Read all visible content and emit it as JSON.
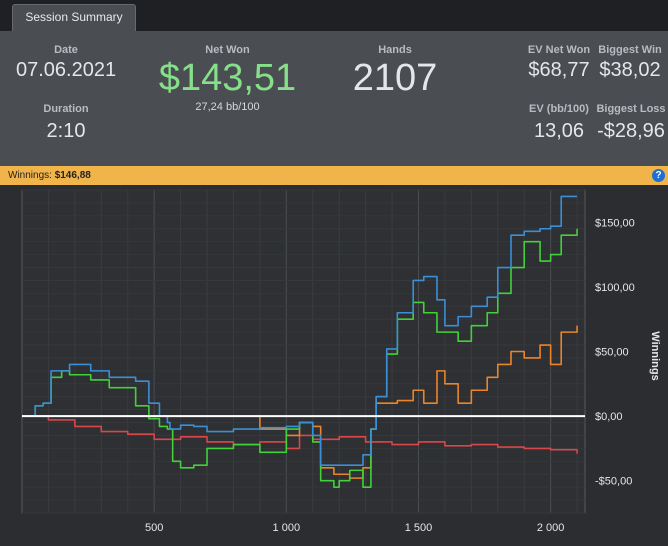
{
  "tab": {
    "label": "Session Summary"
  },
  "summary": {
    "date_label": "Date",
    "date_value": "07.06.2021",
    "duration_label": "Duration",
    "duration_value": "2:10",
    "netwon_label": "Net Won",
    "netwon_value": "$143,51",
    "netwon_sub": "27,24 bb/100",
    "hands_label": "Hands",
    "hands_value": "2107",
    "ev_net_label": "EV Net Won",
    "ev_net_value": "$68,77",
    "biggest_win_label": "Biggest Win",
    "biggest_win_value": "$38,02",
    "ev_bb_label": "EV (bb/100)",
    "ev_bb_value": "13,06",
    "biggest_loss_label": "Biggest Loss",
    "biggest_loss_value": "-$28,96"
  },
  "winnings_bar": {
    "label": "Winnings:",
    "value": "$146,88",
    "help": "?"
  },
  "colors": {
    "blue": "#3a8fd6",
    "green": "#43d13a",
    "orange": "#e8862a",
    "red": "#d9474a",
    "netwon_value": "#86e08a",
    "orangebar": "#f0b44a"
  },
  "chart_data": {
    "type": "line",
    "xlabel": "",
    "ylabel": "Winnings",
    "xlim": [
      0,
      2130
    ],
    "ylim": [
      -75,
      175
    ],
    "x_ticks": [
      500,
      1000,
      1500,
      2000
    ],
    "x_tick_labels": [
      "500",
      "1 000",
      "1 500",
      "2 000"
    ],
    "y_ticks": [
      150,
      100,
      50,
      0,
      -50
    ],
    "y_tick_labels": [
      "$150,00",
      "$100,00",
      "$50,00",
      "$0,00",
      "-$50,00"
    ],
    "zero_line": 0,
    "grid": true,
    "series": [
      {
        "color": "blue",
        "x": [
          0,
          50,
          80,
          110,
          180,
          260,
          330,
          430,
          480,
          520,
          550,
          560,
          600,
          650,
          700,
          800,
          900,
          1000,
          1050,
          1100,
          1130,
          1200,
          1250,
          1290,
          1320,
          1340,
          1380,
          1420,
          1480,
          1520,
          1570,
          1600,
          1650,
          1700,
          1760,
          1800,
          1850,
          1900,
          1960,
          2000,
          2040,
          2100
        ],
        "y": [
          0,
          8,
          10,
          35,
          40,
          35,
          30,
          27,
          10,
          0,
          -5,
          -10,
          -7,
          -8,
          -12,
          -10,
          -9,
          -8,
          -5,
          -15,
          -38,
          -38,
          -38,
          -30,
          -10,
          15,
          52,
          80,
          105,
          108,
          90,
          70,
          77,
          85,
          92,
          115,
          140,
          143,
          145,
          147,
          170,
          170
        ]
      },
      {
        "color": "green",
        "x": [
          0,
          50,
          80,
          110,
          150,
          180,
          260,
          330,
          430,
          480,
          520,
          550,
          570,
          600,
          650,
          700,
          800,
          900,
          1000,
          1050,
          1100,
          1130,
          1180,
          1200,
          1240,
          1290,
          1320,
          1340,
          1380,
          1420,
          1480,
          1520,
          1570,
          1600,
          1650,
          1700,
          1760,
          1800,
          1850,
          1900,
          1960,
          2000,
          2040,
          2100
        ],
        "y": [
          0,
          8,
          10,
          30,
          35,
          32,
          28,
          22,
          8,
          -2,
          -8,
          -10,
          -35,
          -40,
          -38,
          -25,
          -22,
          -28,
          -10,
          -5,
          -20,
          -50,
          -55,
          -50,
          -42,
          -55,
          -10,
          15,
          48,
          75,
          88,
          80,
          65,
          65,
          58,
          70,
          80,
          95,
          115,
          135,
          120,
          125,
          140,
          145
        ]
      },
      {
        "color": "orange",
        "x": [
          0,
          800,
          900,
          1000,
          1050,
          1100,
          1130,
          1180,
          1240,
          1290,
          1320,
          1340,
          1380,
          1420,
          1480,
          1520,
          1570,
          1600,
          1650,
          1700,
          1760,
          1800,
          1850,
          1900,
          1960,
          2000,
          2040,
          2100
        ],
        "y": [
          0,
          0,
          -10,
          -15,
          -5,
          -8,
          -40,
          -45,
          -48,
          -40,
          -10,
          10,
          10,
          12,
          20,
          10,
          35,
          25,
          10,
          20,
          30,
          40,
          50,
          45,
          55,
          40,
          65,
          70
        ]
      },
      {
        "color": "red",
        "x": [
          0,
          100,
          200,
          300,
          400,
          500,
          600,
          700,
          800,
          900,
          1000,
          1050,
          1100,
          1200,
          1300,
          1400,
          1500,
          1600,
          1700,
          1800,
          1900,
          2000,
          2100
        ],
        "y": [
          0,
          -3,
          -8,
          -12,
          -14,
          -18,
          -16,
          -20,
          -22,
          -20,
          -25,
          -15,
          -18,
          -16,
          -20,
          -22,
          -20,
          -23,
          -22,
          -24,
          -25,
          -26,
          -29
        ]
      }
    ]
  }
}
